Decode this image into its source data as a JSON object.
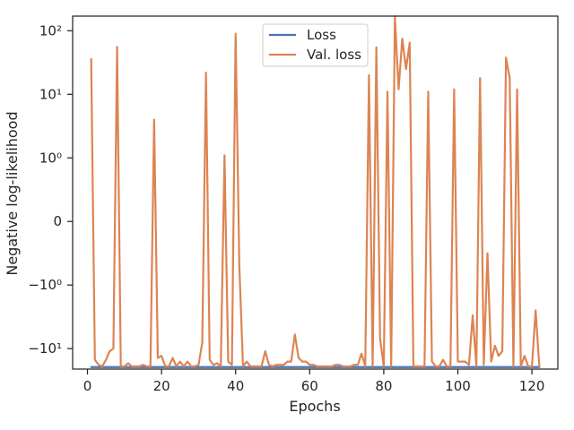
{
  "chart_data": {
    "type": "line",
    "title": "",
    "xlabel": "Epochs",
    "ylabel": "Negative log-likelihood",
    "xlim": [
      -4,
      127
    ],
    "yscale": "symlog",
    "ylim": [
      -21,
      170
    ],
    "xticks": [
      0,
      20,
      40,
      60,
      80,
      100,
      120
    ],
    "yticks": [
      {
        "value": 100,
        "label": "10²"
      },
      {
        "value": 10,
        "label": "10¹"
      },
      {
        "value": 1,
        "label": "10⁰"
      },
      {
        "value": 0,
        "label": "0"
      },
      {
        "value": -1,
        "label": "−10⁰"
      },
      {
        "value": -10,
        "label": "−10¹"
      }
    ],
    "grid": false,
    "legend_position": "top-center",
    "series": [
      {
        "name": "Loss",
        "color": "#4c72b0",
        "x": [
          1,
          122
        ],
        "y": [
          -19.5,
          -19.5
        ]
      },
      {
        "name": "Val. loss",
        "color": "#dd8452",
        "x": [
          1,
          2,
          3,
          4,
          5,
          6,
          7,
          8,
          9,
          10,
          11,
          12,
          13,
          14,
          15,
          16,
          17,
          18,
          19,
          20,
          21,
          22,
          23,
          24,
          25,
          26,
          27,
          28,
          29,
          30,
          31,
          32,
          33,
          34,
          35,
          36,
          37,
          38,
          39,
          40,
          41,
          42,
          43,
          44,
          45,
          46,
          47,
          48,
          49,
          50,
          51,
          52,
          53,
          54,
          55,
          56,
          57,
          58,
          59,
          60,
          61,
          62,
          63,
          64,
          65,
          66,
          67,
          68,
          69,
          70,
          71,
          72,
          73,
          74,
          75,
          76,
          77,
          78,
          79,
          80,
          81,
          82,
          83,
          84,
          85,
          86,
          87,
          88,
          89,
          90,
          91,
          92,
          93,
          94,
          95,
          96,
          97,
          98,
          99,
          100,
          101,
          102,
          103,
          104,
          105,
          106,
          107,
          108,
          109,
          110,
          111,
          112,
          113,
          114,
          115,
          116,
          117,
          118,
          119,
          120,
          121,
          122
        ],
        "y": [
          36,
          -15,
          -18,
          -19,
          -15,
          -11,
          -10,
          56,
          -19,
          -19,
          -17,
          -19,
          -19,
          -19,
          -18,
          -19,
          -19,
          4,
          -14,
          -13,
          -19,
          -19,
          -14,
          -19,
          -16,
          -19,
          -16,
          -19,
          -19,
          -18,
          -8,
          22,
          -15,
          -18,
          -17,
          -19,
          1.1,
          -16,
          -18,
          90,
          -0.7,
          -19,
          -16,
          -19,
          -19,
          -19,
          -19,
          -11,
          -18,
          -19,
          -18,
          -18,
          -18,
          -16,
          -16,
          -6,
          -14,
          -16,
          -16,
          -18,
          -18,
          -19,
          -19,
          -19,
          -19,
          -19,
          -18,
          -18,
          -19,
          -19,
          -19,
          -18,
          -18,
          -12,
          -19,
          20,
          -19,
          55,
          -7,
          -19,
          11,
          -19,
          170,
          12,
          75,
          25,
          65,
          -19,
          -19,
          -19,
          -19,
          11,
          -16,
          -19,
          -19,
          -15,
          -19,
          -19,
          12,
          -16,
          -16,
          -16,
          -18,
          -3,
          -19,
          18,
          -18,
          -0.5,
          -16,
          -9,
          -13,
          -11,
          38,
          18,
          -19,
          12,
          -19,
          -13,
          -19,
          -19,
          -2.5,
          -19
        ]
      }
    ]
  }
}
